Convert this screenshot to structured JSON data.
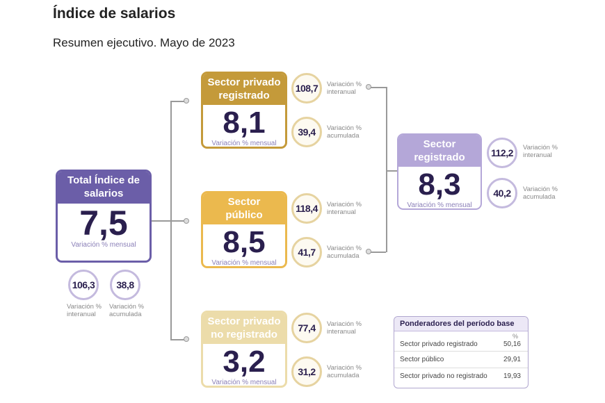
{
  "title": "Índice de salarios",
  "subtitle": "Resumen ejecutivo. Mayo de 2023",
  "colors": {
    "total": "#6b5ea8",
    "privado_registrado": "#c49a3a",
    "publico": "#ebb94e",
    "no_registrado": "#ecdcaa",
    "registrado": "#b4a7d8"
  },
  "labels": {
    "mensual": "Variación % mensual",
    "interanual_1": "Variación %",
    "interanual_2": "interanual",
    "acumulada_1": "Variación %",
    "acumulada_2": "acumulada"
  },
  "total": {
    "title": "Total Índice de salarios",
    "mensual": "7,5",
    "interanual": "106,3",
    "acumulada": "38,8"
  },
  "privado_registrado": {
    "title": "Sector privado registrado",
    "mensual": "8,1",
    "interanual": "108,7",
    "acumulada": "39,4"
  },
  "publico": {
    "title": "Sector público",
    "mensual": "8,5",
    "interanual": "118,4",
    "acumulada": "41,7"
  },
  "no_registrado": {
    "title": "Sector privado no registrado",
    "mensual": "3,2",
    "interanual": "77,4",
    "acumulada": "31,2"
  },
  "registrado": {
    "title": "Sector registrado",
    "mensual": "8,3",
    "interanual": "112,2",
    "acumulada": "40,2"
  },
  "ponderadores": {
    "title": "Ponderadores del período base",
    "unit": "%",
    "rows": [
      {
        "label": "Sector privado registrado",
        "value": "50,16"
      },
      {
        "label": "Sector público",
        "value": "29,91"
      },
      {
        "label": "Sector privado no registrado",
        "value": "19,93"
      }
    ]
  }
}
